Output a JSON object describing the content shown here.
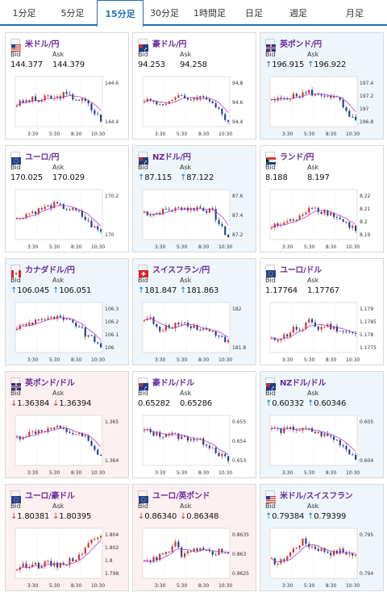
{
  "tabs": [
    "1分足",
    "5分足",
    "15分足",
    "30分足",
    "1時間足",
    "日足",
    "週足",
    "月足"
  ],
  "active_tab": 2,
  "labels": {
    "bid": "Bid",
    "ask": "Ask"
  },
  "colors": {
    "up_bg": "#eef6fc",
    "down_bg": "#fdf0f0",
    "accent": "#1d6fb8",
    "bull": "#d0342c",
    "bear": "#1f3f8f",
    "ma": "#b040c0",
    "ma2": "#4bb0d8"
  },
  "xticks": [
    "3:30",
    "5:30",
    "8:30",
    "10:30"
  ],
  "pairs": [
    {
      "name": "米ドル/円",
      "flag": "us",
      "trend": "none",
      "bid": "144.377",
      "ask": "144.379",
      "bid_arrow": "",
      "ask_arrow": "",
      "yticks": [
        "144.6",
        "144.4"
      ]
    },
    {
      "name": "豪ドル/円",
      "flag": "au",
      "trend": "none",
      "bid": "94.253",
      "ask": "94.258",
      "bid_arrow": "",
      "ask_arrow": "",
      "yticks": [
        "94.8",
        "94.6",
        "94.4"
      ]
    },
    {
      "name": "英ポンド/円",
      "flag": "gb",
      "trend": "up",
      "bid": "196.915",
      "ask": "196.922",
      "bid_arrow": "↑",
      "ask_arrow": "↑",
      "yticks": [
        "197.4",
        "197.2",
        "197",
        "196.8"
      ]
    },
    {
      "name": "ユーロ/円",
      "flag": "eu",
      "trend": "none",
      "bid": "170.025",
      "ask": "170.029",
      "bid_arrow": "",
      "ask_arrow": "",
      "yticks": [
        "170.2",
        "170"
      ]
    },
    {
      "name": "NZドル/円",
      "flag": "nz",
      "trend": "up",
      "bid": "87.115",
      "ask": "87.122",
      "bid_arrow": "↑",
      "ask_arrow": "↑",
      "yticks": [
        "87.6",
        "87.4",
        "87.2"
      ]
    },
    {
      "name": "ランド/円",
      "flag": "za",
      "trend": "none",
      "bid": "8.188",
      "ask": "8.197",
      "bid_arrow": "",
      "ask_arrow": "",
      "yticks": [
        "8.22",
        "8.21",
        "8.2",
        "8.19"
      ]
    },
    {
      "name": "カナダドル/円",
      "flag": "ca",
      "trend": "up",
      "bid": "106.045",
      "ask": "106.051",
      "bid_arrow": "↑",
      "ask_arrow": "↑",
      "yticks": [
        "106.3",
        "106.2",
        "106.1",
        "106"
      ]
    },
    {
      "name": "スイスフラン/円",
      "flag": "ch",
      "trend": "up",
      "bid": "181.847",
      "ask": "181.863",
      "bid_arrow": "↑",
      "ask_arrow": "↑",
      "yticks": [
        "182",
        "181.8"
      ]
    },
    {
      "name": "ユーロ/ドル",
      "flag": "eu",
      "trend": "none",
      "bid": "1.17764",
      "ask": "1.17767",
      "bid_arrow": "",
      "ask_arrow": "",
      "yticks": [
        "1.179",
        "1.1785",
        "1.178",
        "1.1775"
      ]
    },
    {
      "name": "英ポンド/ドル",
      "flag": "gb",
      "trend": "down",
      "bid": "1.36384",
      "ask": "1.36394",
      "bid_arrow": "↓",
      "ask_arrow": "↓",
      "yticks": [
        "1.365",
        "1.364"
      ]
    },
    {
      "name": "豪ドル/ドル",
      "flag": "au",
      "trend": "none",
      "bid": "0.65282",
      "ask": "0.65286",
      "bid_arrow": "",
      "ask_arrow": "",
      "yticks": [
        "0.655",
        "0.654",
        "0.653"
      ]
    },
    {
      "name": "NZドル/ドル",
      "flag": "nz",
      "trend": "up",
      "bid": "0.60332",
      "ask": "0.60346",
      "bid_arrow": "↑",
      "ask_arrow": "↑",
      "yticks": [
        "0.605",
        "0.604"
      ]
    },
    {
      "name": "ユーロ/豪ドル",
      "flag": "eu",
      "trend": "down",
      "bid": "1.80381",
      "ask": "1.80395",
      "bid_arrow": "↓",
      "ask_arrow": "↓",
      "yticks": [
        "1.804",
        "1.802",
        "1.8",
        "1.798"
      ]
    },
    {
      "name": "ユーロ/英ポンド",
      "flag": "eu",
      "trend": "down",
      "bid": "0.86340",
      "ask": "0.86348",
      "bid_arrow": "↓",
      "ask_arrow": "↓",
      "yticks": [
        "0.8635",
        "0.863",
        "0.8625"
      ]
    },
    {
      "name": "米ドル/スイスフラン",
      "flag": "us",
      "trend": "up",
      "bid": "0.79384",
      "ask": "0.79399",
      "bid_arrow": "↑",
      "ask_arrow": "↑",
      "yticks": [
        "0.795",
        "0.794"
      ]
    }
  ]
}
